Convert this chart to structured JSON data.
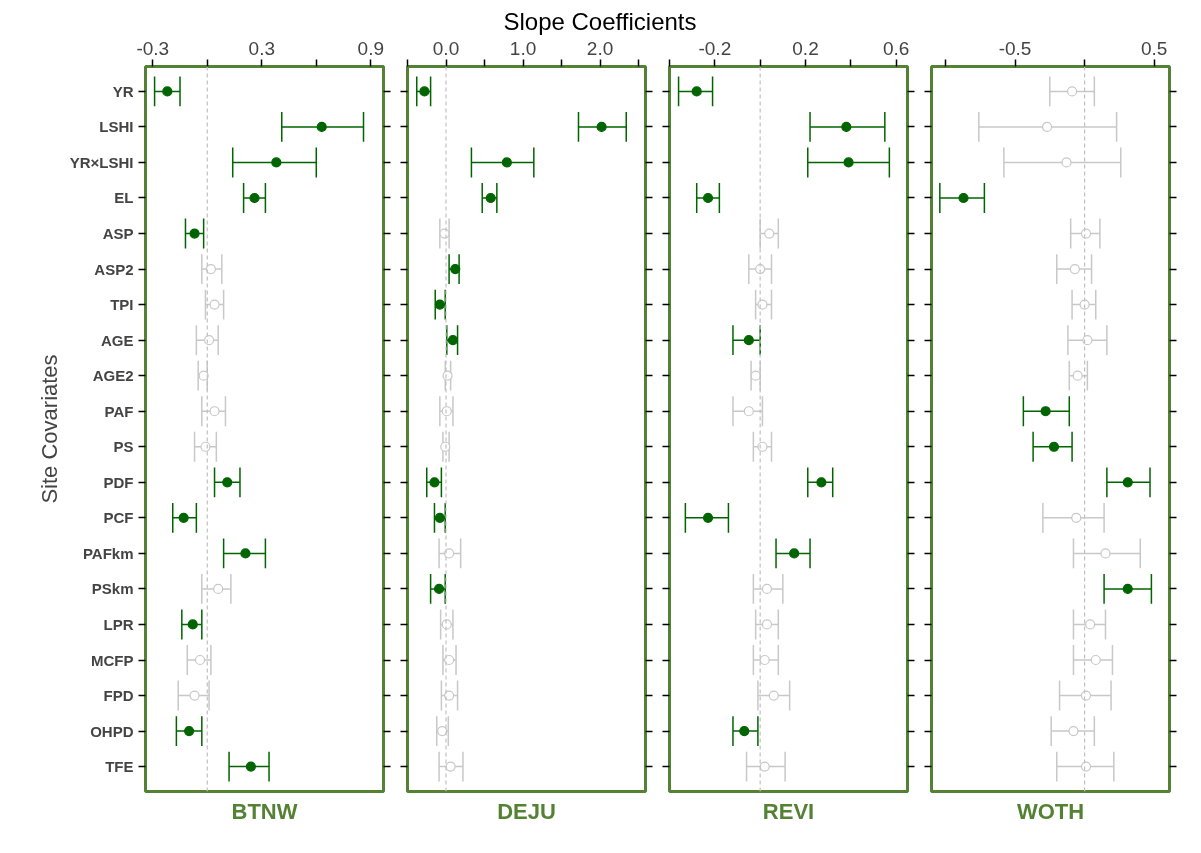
{
  "chart_data": [
    {
      "type": "scatter",
      "orientation": "horizontal",
      "ylabel": "Site Covariates",
      "xlabel": "BTNW",
      "categories": [
        "YR",
        "LSHI",
        "YR×LSHI",
        "EL",
        "ASP",
        "ASP2",
        "TPI",
        "AGE",
        "AGE2",
        "PAF",
        "PS",
        "PDF",
        "PCF",
        "PAFkm",
        "PSkm",
        "LPR",
        "MCFP",
        "FPD",
        "OHPD",
        "TFE"
      ],
      "xlim": [
        -0.34,
        0.97
      ],
      "xticks": [
        -0.3,
        {
          "value": 0,
          "label": null
        },
        0.3,
        {
          "value": 0.6,
          "label": null
        },
        0.9
      ],
      "grid": false,
      "marker": "circle",
      "ref_lines": [
        {
          "axis": "x",
          "value": 0,
          "color": "#c0c0c0",
          "line_style": "dashed"
        }
      ],
      "series": [
        {
          "color": "#006400",
          "values": [
            -0.22,
            0.63,
            0.38,
            0.26,
            -0.07,
            null,
            null,
            null,
            null,
            null,
            null,
            0.11,
            -0.13,
            0.21,
            null,
            -0.08,
            null,
            null,
            -0.1,
            0.24
          ],
          "errors": [
            [
              -0.29,
              -0.15
            ],
            [
              0.41,
              0.86
            ],
            [
              0.14,
              0.6
            ],
            [
              0.2,
              0.32
            ],
            [
              -0.12,
              -0.02
            ],
            null,
            null,
            null,
            null,
            null,
            null,
            [
              0.04,
              0.18
            ],
            [
              -0.19,
              -0.06
            ],
            [
              0.09,
              0.32
            ],
            null,
            [
              -0.14,
              -0.03
            ],
            null,
            null,
            [
              -0.17,
              -0.03
            ],
            [
              0.12,
              0.34
            ]
          ]
        },
        {
          "color": "#c8c8c8",
          "values": [
            null,
            null,
            null,
            null,
            null,
            0.02,
            0.04,
            0.01,
            -0.02,
            0.04,
            -0.01,
            null,
            null,
            null,
            0.06,
            null,
            -0.04,
            -0.07,
            null,
            null
          ],
          "errors": [
            null,
            null,
            null,
            null,
            null,
            [
              -0.03,
              0.08
            ],
            [
              -0.01,
              0.09
            ],
            [
              -0.06,
              0.06
            ],
            [
              -0.05,
              0.0
            ],
            [
              -0.03,
              0.1
            ],
            [
              -0.07,
              0.05
            ],
            null,
            null,
            null,
            [
              -0.03,
              0.13
            ],
            null,
            [
              -0.11,
              0.02
            ],
            [
              -0.16,
              0.01
            ],
            null,
            null
          ]
        }
      ]
    },
    {
      "type": "scatter",
      "orientation": "horizontal",
      "title": "Slope Coefficients",
      "xlabel": "DEJU",
      "tick_labels": "x",
      "xlim": [
        -0.5,
        2.59
      ],
      "xticks": [
        {
          "value": -0.5,
          "label": null
        },
        {
          "value": 0,
          "label": "0.0"
        },
        {
          "value": 0.5,
          "label": null
        },
        {
          "value": 1,
          "label": "1.0"
        },
        {
          "value": 1.5,
          "label": null
        },
        {
          "value": 2,
          "label": "2.0"
        },
        {
          "value": 2.5,
          "label": null
        }
      ],
      "grid": false,
      "marker": "circle",
      "ref_lines": [
        {
          "axis": "x",
          "value": 0,
          "color": "#c0c0c0",
          "line_style": "dashed"
        }
      ],
      "series": [
        {
          "color": "#006400",
          "values": [
            -0.28,
            2.02,
            0.79,
            0.58,
            null,
            0.12,
            -0.08,
            0.09,
            null,
            null,
            null,
            -0.15,
            -0.08,
            null,
            -0.09,
            null,
            null,
            null,
            null,
            null
          ],
          "errors": [
            [
              -0.38,
              -0.2
            ],
            [
              1.72,
              2.34
            ],
            [
              0.33,
              1.14
            ],
            [
              0.47,
              0.66
            ],
            null,
            [
              0.04,
              0.17
            ],
            [
              -0.14,
              -0.01
            ],
            [
              0.01,
              0.15
            ],
            null,
            null,
            null,
            [
              -0.25,
              -0.06
            ],
            [
              -0.15,
              -0.01
            ],
            null,
            [
              -0.2,
              -0.01
            ],
            null,
            null,
            null,
            null,
            null
          ]
        },
        {
          "color": "#c8c8c8",
          "values": [
            null,
            null,
            null,
            null,
            -0.02,
            null,
            null,
            null,
            0.02,
            0.01,
            -0.01,
            null,
            null,
            0.04,
            null,
            0.01,
            0.04,
            0.04,
            -0.05,
            0.06
          ],
          "errors": [
            null,
            null,
            null,
            null,
            [
              -0.08,
              0.04
            ],
            null,
            null,
            null,
            [
              -0.01,
              0.06
            ],
            [
              -0.08,
              0.09
            ],
            [
              -0.04,
              0.04
            ],
            null,
            null,
            [
              -0.09,
              0.19
            ],
            null,
            [
              -0.07,
              0.09
            ],
            [
              -0.04,
              0.13
            ],
            [
              -0.06,
              0.15
            ],
            [
              -0.12,
              0.03
            ],
            [
              -0.09,
              0.22
            ]
          ]
        }
      ]
    },
    {
      "type": "scatter",
      "orientation": "horizontal",
      "xlabel": "REVI",
      "tick_labels": "x",
      "xlim": [
        -0.4,
        0.65
      ],
      "xticks": [
        {
          "value": -0.4,
          "label": null
        },
        -0.2,
        {
          "value": 0,
          "label": null
        },
        0.2,
        {
          "value": 0.4,
          "label": null
        },
        0.6
      ],
      "grid": false,
      "marker": "circle",
      "ref_lines": [
        {
          "axis": "x",
          "value": 0,
          "color": "#c0c0c0",
          "line_style": "dashed"
        }
      ],
      "series": [
        {
          "color": "#006400",
          "values": [
            -0.28,
            0.38,
            0.39,
            -0.23,
            null,
            null,
            null,
            -0.05,
            null,
            null,
            null,
            0.27,
            -0.23,
            0.15,
            null,
            null,
            null,
            null,
            -0.07,
            null
          ],
          "errors": [
            [
              -0.36,
              -0.21
            ],
            [
              0.22,
              0.55
            ],
            [
              0.21,
              0.57
            ],
            [
              -0.28,
              -0.18
            ],
            null,
            null,
            null,
            [
              -0.12,
              0.0
            ],
            null,
            null,
            null,
            [
              0.21,
              0.32
            ],
            [
              -0.33,
              -0.14
            ],
            [
              0.07,
              0.22
            ],
            null,
            null,
            null,
            null,
            [
              -0.12,
              -0.01
            ],
            null
          ]
        },
        {
          "color": "#c8c8c8",
          "values": [
            null,
            null,
            null,
            null,
            0.04,
            0.0,
            0.01,
            null,
            -0.02,
            -0.05,
            0.01,
            null,
            null,
            null,
            0.03,
            0.03,
            0.02,
            0.06,
            null,
            0.02
          ],
          "errors": [
            null,
            null,
            null,
            null,
            [
              0.0,
              0.08
            ],
            [
              -0.05,
              0.05
            ],
            [
              -0.02,
              0.05
            ],
            null,
            [
              -0.04,
              0.0
            ],
            [
              -0.12,
              0.01
            ],
            [
              -0.03,
              0.05
            ],
            null,
            null,
            null,
            [
              -0.03,
              0.1
            ],
            [
              -0.02,
              0.08
            ],
            [
              -0.03,
              0.08
            ],
            [
              -0.01,
              0.13
            ],
            null,
            [
              -0.06,
              0.11
            ]
          ]
        }
      ]
    },
    {
      "type": "scatter",
      "orientation": "horizontal",
      "xlabel": "WOTH",
      "tick_labels": "x",
      "xlim": [
        -1.1,
        0.61
      ],
      "xticks": [
        {
          "value": -1,
          "label": null
        },
        -0.5,
        {
          "value": 0,
          "label": null
        },
        0.5
      ],
      "grid": false,
      "marker": "circle",
      "ref_lines": [
        {
          "axis": "x",
          "value": 0,
          "color": "#c0c0c0",
          "line_style": "dashed"
        }
      ],
      "series": [
        {
          "color": "#006400",
          "values": [
            null,
            null,
            null,
            -0.87,
            null,
            null,
            null,
            null,
            null,
            -0.28,
            -0.22,
            0.31,
            null,
            null,
            0.31,
            null,
            null,
            null,
            null,
            null
          ],
          "errors": [
            null,
            null,
            null,
            [
              -1.04,
              -0.72
            ],
            null,
            null,
            null,
            null,
            null,
            [
              -0.44,
              -0.11
            ],
            [
              -0.37,
              -0.09
            ],
            [
              0.16,
              0.47
            ],
            null,
            null,
            [
              0.14,
              0.48
            ],
            null,
            null,
            null,
            null,
            null
          ]
        },
        {
          "color": "#c8c8c8",
          "values": [
            -0.09,
            -0.27,
            -0.13,
            null,
            0.01,
            -0.07,
            0.0,
            0.02,
            -0.05,
            null,
            null,
            null,
            -0.06,
            0.15,
            null,
            0.04,
            0.08,
            0.01,
            -0.08,
            0.01
          ],
          "errors": [
            [
              -0.25,
              0.07
            ],
            [
              -0.76,
              0.23
            ],
            [
              -0.58,
              0.26
            ],
            null,
            [
              -0.1,
              0.11
            ],
            [
              -0.2,
              0.05
            ],
            [
              -0.09,
              0.08
            ],
            [
              -0.12,
              0.16
            ],
            [
              -0.11,
              0.02
            ],
            null,
            null,
            null,
            [
              -0.3,
              0.14
            ],
            [
              -0.08,
              0.4
            ],
            null,
            [
              -0.08,
              0.15
            ],
            [
              -0.08,
              0.2
            ],
            [
              -0.18,
              0.19
            ],
            [
              -0.24,
              0.07
            ],
            [
              -0.2,
              0.21
            ]
          ]
        }
      ]
    }
  ]
}
